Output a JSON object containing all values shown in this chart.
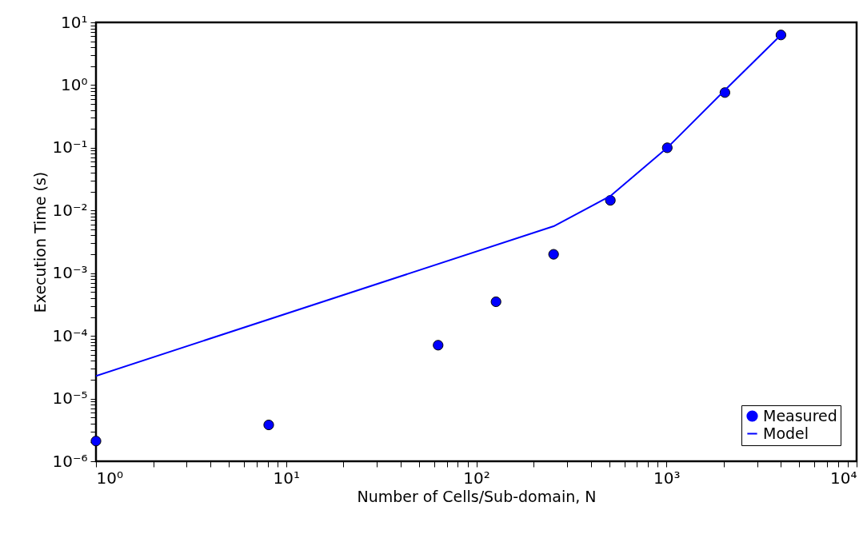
{
  "chart_data": {
    "type": "scatter",
    "xlabel": "Number of Cells/Sub-domain, N",
    "ylabel": "Execution Time (s)",
    "log": "xy",
    "grid": false,
    "legend": "bottom right",
    "xlim": [
      1,
      10000
    ],
    "ylim": [
      1e-06,
      10
    ],
    "xticks": [
      {
        "value": 1,
        "label": "10⁰"
      },
      {
        "value": 2,
        "label": null
      },
      {
        "value": 3,
        "label": null
      },
      {
        "value": 4,
        "label": null
      },
      {
        "value": 5,
        "label": null
      },
      {
        "value": 6,
        "label": null
      },
      {
        "value": 7,
        "label": null
      },
      {
        "value": 8,
        "label": null
      },
      {
        "value": 9,
        "label": null
      },
      {
        "value": 10,
        "label": "10¹"
      },
      {
        "value": 20,
        "label": null
      },
      {
        "value": 30,
        "label": null
      },
      {
        "value": 40,
        "label": null
      },
      {
        "value": 50,
        "label": null
      },
      {
        "value": 60,
        "label": null
      },
      {
        "value": 70,
        "label": null
      },
      {
        "value": 80,
        "label": null
      },
      {
        "value": 90,
        "label": null
      },
      {
        "value": 100,
        "label": "10²"
      },
      {
        "value": 200,
        "label": null
      },
      {
        "value": 300,
        "label": null
      },
      {
        "value": 400,
        "label": null
      },
      {
        "value": 500,
        "label": null
      },
      {
        "value": 600,
        "label": null
      },
      {
        "value": 700,
        "label": null
      },
      {
        "value": 800,
        "label": null
      },
      {
        "value": 900,
        "label": null
      },
      {
        "value": 1000,
        "label": "10³"
      },
      {
        "value": 2000,
        "label": null
      },
      {
        "value": 3000,
        "label": null
      },
      {
        "value": 4000,
        "label": null
      },
      {
        "value": 5000,
        "label": null
      },
      {
        "value": 6000,
        "label": null
      },
      {
        "value": 7000,
        "label": null
      },
      {
        "value": 8000,
        "label": null
      },
      {
        "value": 9000,
        "label": null
      },
      {
        "value": 10000,
        "label": "10⁴"
      }
    ],
    "yticks": [
      {
        "value": 1e-06,
        "label": "10⁻⁶"
      },
      {
        "value": 2e-06,
        "label": null
      },
      {
        "value": 3e-06,
        "label": null
      },
      {
        "value": 4e-06,
        "label": null
      },
      {
        "value": 5e-06,
        "label": null
      },
      {
        "value": 6e-06,
        "label": null
      },
      {
        "value": 7e-06,
        "label": null
      },
      {
        "value": 8e-06,
        "label": null
      },
      {
        "value": 9e-06,
        "label": null
      },
      {
        "value": 1e-05,
        "label": "10⁻⁵"
      },
      {
        "value": 2e-05,
        "label": null
      },
      {
        "value": 3e-05,
        "label": null
      },
      {
        "value": 4e-05,
        "label": null
      },
      {
        "value": 5e-05,
        "label": null
      },
      {
        "value": 6e-05,
        "label": null
      },
      {
        "value": 7e-05,
        "label": null
      },
      {
        "value": 8e-05,
        "label": null
      },
      {
        "value": 9e-05,
        "label": null
      },
      {
        "value": 0.0001,
        "label": "10⁻⁴"
      },
      {
        "value": 0.0002,
        "label": null
      },
      {
        "value": 0.0003,
        "label": null
      },
      {
        "value": 0.0004,
        "label": null
      },
      {
        "value": 0.0005,
        "label": null
      },
      {
        "value": 0.0006,
        "label": null
      },
      {
        "value": 0.0007,
        "label": null
      },
      {
        "value": 0.0008,
        "label": null
      },
      {
        "value": 0.0009,
        "label": null
      },
      {
        "value": 0.001,
        "label": "10⁻³"
      },
      {
        "value": 0.002,
        "label": null
      },
      {
        "value": 0.003,
        "label": null
      },
      {
        "value": 0.004,
        "label": null
      },
      {
        "value": 0.005,
        "label": null
      },
      {
        "value": 0.006,
        "label": null
      },
      {
        "value": 0.007,
        "label": null
      },
      {
        "value": 0.008,
        "label": null
      },
      {
        "value": 0.009,
        "label": null
      },
      {
        "value": 0.01,
        "label": "10⁻²"
      },
      {
        "value": 0.02,
        "label": null
      },
      {
        "value": 0.03,
        "label": null
      },
      {
        "value": 0.04,
        "label": null
      },
      {
        "value": 0.05,
        "label": null
      },
      {
        "value": 0.06,
        "label": null
      },
      {
        "value": 0.07,
        "label": null
      },
      {
        "value": 0.08,
        "label": null
      },
      {
        "value": 0.09,
        "label": null
      },
      {
        "value": 0.1,
        "label": "10⁻¹"
      },
      {
        "value": 0.2,
        "label": null
      },
      {
        "value": 0.3,
        "label": null
      },
      {
        "value": 0.4,
        "label": null
      },
      {
        "value": 0.5,
        "label": null
      },
      {
        "value": 0.6,
        "label": null
      },
      {
        "value": 0.7,
        "label": null
      },
      {
        "value": 0.8,
        "label": null
      },
      {
        "value": 0.9,
        "label": null
      },
      {
        "value": 1,
        "label": "10⁰"
      },
      {
        "value": 2,
        "label": null
      },
      {
        "value": 3,
        "label": null
      },
      {
        "value": 4,
        "label": null
      },
      {
        "value": 5,
        "label": null
      },
      {
        "value": 6,
        "label": null
      },
      {
        "value": 7,
        "label": null
      },
      {
        "value": 8,
        "label": null
      },
      {
        "value": 9,
        "label": null
      },
      {
        "value": 10,
        "label": "10¹"
      }
    ],
    "series": [
      {
        "name": "Measured",
        "marker": "circle",
        "color": "#0000ff",
        "x": [
          1,
          8.1,
          63,
          127,
          255,
          507,
          1010,
          2030,
          4000
        ],
        "values": [
          2.1e-06,
          3.8e-06,
          7.1e-05,
          0.00035,
          0.002,
          0.0145,
          0.1,
          0.76,
          6.3
        ]
      },
      {
        "name": "Model",
        "type": "line",
        "marker": "none",
        "color": "#0000ff",
        "x": [
          1,
          255,
          507,
          1010,
          2030,
          4000
        ],
        "values": [
          2.3e-05,
          0.0056,
          0.017,
          0.1,
          0.83,
          6.3
        ]
      }
    ]
  }
}
